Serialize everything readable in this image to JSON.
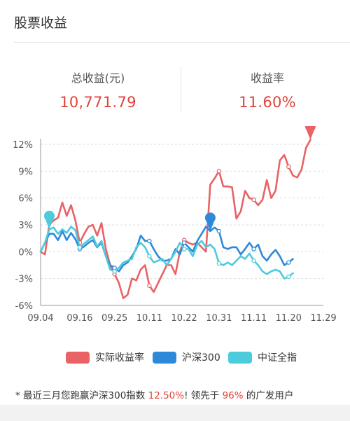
{
  "page": {
    "title": "股票收益"
  },
  "summary": {
    "total_label": "总收益(元)",
    "total_value": "10,771.79",
    "rate_label": "收益率",
    "rate_value": "11.60%",
    "value_color": "#e0433a"
  },
  "legend": {
    "items": [
      {
        "label": "实际收益率",
        "color": "#e96266"
      },
      {
        "label": "沪深300",
        "color": "#2f89d9"
      },
      {
        "label": "中证全指",
        "color": "#4ccbdc"
      }
    ]
  },
  "footnote": {
    "prefix": "* 最近三月您跑赢沪深300指数 ",
    "beat_pct": "12.50%",
    "middle": "! 领先于 ",
    "lead_pct": "96%",
    "suffix": " 的广发用户"
  },
  "chart_data": {
    "type": "line",
    "x_tick_labels": [
      "09.04",
      "09.16",
      "09.25",
      "10.11",
      "10.22",
      "10.31",
      "11.11",
      "11.20",
      "11.29"
    ],
    "x_tick_index": [
      0,
      9,
      17,
      25,
      33,
      41,
      49,
      57,
      65
    ],
    "y_ticks": [
      12,
      9,
      6,
      3,
      0,
      -3,
      -6
    ],
    "y_tick_labels": [
      "12%",
      "9%",
      "6%",
      "3%",
      "0%",
      "-3%",
      "-6%"
    ],
    "ylim": [
      -6,
      12
    ],
    "grid": "horizontal-dashed",
    "legend_position": "bottom",
    "series": [
      {
        "name": "实际收益率",
        "color": "#e96266",
        "values": [
          0,
          -0.3,
          3,
          3.5,
          3.8,
          5.5,
          4,
          5.2,
          3.5,
          1,
          2,
          2.8,
          3,
          1.8,
          3.2,
          0.3,
          -1.5,
          -2.5,
          -3.5,
          -5.2,
          -4.8,
          -3,
          -3.2,
          -2,
          -1.5,
          -3.8,
          -4.5,
          -3.5,
          -2.5,
          -1.5,
          -1.5,
          -2.5,
          0,
          1.3,
          1,
          0.8,
          1,
          0.5,
          0,
          7.5,
          8.2,
          9,
          7.3,
          7.3,
          7.2,
          3.7,
          4.5,
          6.8,
          6,
          5.8,
          5.2,
          5.8,
          8,
          6,
          6.8,
          10.2,
          10.8,
          9.5,
          8.5,
          8.3,
          9.2,
          11.6,
          12.5
        ],
        "end_marker": true
      },
      {
        "name": "沪深300",
        "color": "#2f89d9",
        "values": [
          0,
          1,
          2,
          2,
          1.3,
          2.3,
          1.3,
          2.1,
          1.4,
          0.3,
          0.6,
          1,
          1.3,
          0.5,
          1,
          -0.5,
          -1.5,
          -1.8,
          -2.2,
          -1.5,
          -1.2,
          -0.5,
          0.3,
          1.8,
          1.2,
          1.2,
          0.3,
          -0.5,
          -1,
          -1,
          -0.8,
          0.3,
          -0.3,
          1,
          0.5,
          0,
          1.2,
          2,
          2.8,
          2.3,
          2.7,
          2.3,
          0.5,
          0.3,
          0.5,
          0.5,
          -0.3,
          0.3,
          1,
          0.3,
          0.8,
          -0.5,
          -1,
          -0.3,
          0.2,
          -0.5,
          -1.5,
          -1.2,
          -0.8
        ],
        "markers": [
          {
            "index": 39
          }
        ]
      },
      {
        "name": "中证全指",
        "color": "#4ccbdc",
        "values": [
          0,
          1,
          2.5,
          2.7,
          2,
          2.5,
          2.1,
          2.8,
          2.4,
          0.5,
          0.9,
          1.3,
          1.7,
          0.6,
          1.2,
          -0.5,
          -2,
          -2.2,
          -1.8,
          -1.2,
          -1,
          -0.8,
          0.5,
          1,
          0.5,
          -0.5,
          -1.2,
          -1,
          -0.8,
          -1.5,
          -0.8,
          0,
          1,
          0.3,
          0.3,
          -0.5,
          0.8,
          1.2,
          0.5,
          0.8,
          0.3,
          -1.3,
          -1.5,
          -1.2,
          -1.5,
          -1,
          -0.5,
          -0.8,
          -0.2,
          -1,
          -1.5,
          -2.2,
          -2.5,
          -2.2,
          -2,
          -2.2,
          -3,
          -2.8,
          -2.4
        ],
        "markers": [
          {
            "index": 2
          }
        ]
      }
    ]
  }
}
